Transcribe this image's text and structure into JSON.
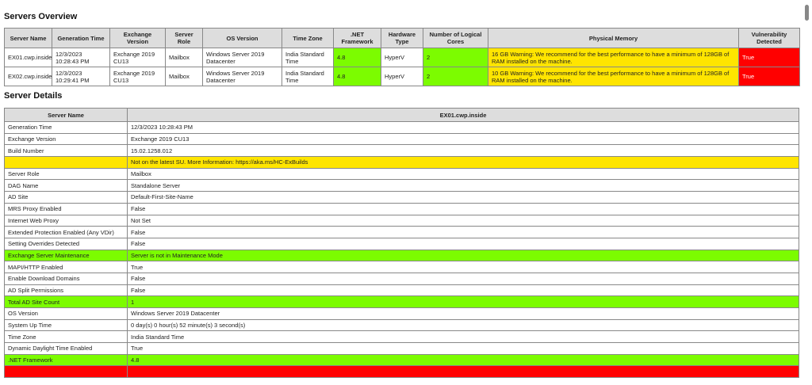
{
  "overview": {
    "title": "Servers Overview",
    "headers": [
      "Server Name",
      "Generation Time",
      "Exchange Version",
      "Server Role",
      "OS Version",
      "Time Zone",
      ".NET Framework",
      "Hardware Type",
      "Number of Logical Cores",
      "Physical Memory",
      "Vulnerability Detected"
    ],
    "rows": [
      [
        "EX01.cwp.inside",
        "12/3/2023 10:28:43 PM",
        "Exchange 2019 CU13",
        "Mailbox",
        "Windows Server 2019 Datacenter",
        "India Standard Time",
        "4.8",
        "HyperV",
        "2",
        "16 GB Warning: We recommend for the best performance to have a minimum of 128GB of RAM installed on the machine.",
        "True"
      ],
      [
        "EX02.cwp.inside",
        "12/3/2023 10:29:41 PM",
        "Exchange 2019 CU13",
        "Mailbox",
        "Windows Server 2019 Datacenter",
        "India Standard Time",
        "4.8",
        "HyperV",
        "2",
        "10 GB Warning: We recommend for the best performance to have a minimum of 128GB of RAM installed on the machine.",
        "True"
      ]
    ]
  },
  "details": {
    "title": "Server Details",
    "headers": [
      "Server Name",
      "EX01.cwp.inside"
    ],
    "rows": [
      {
        "k": "Generation Time",
        "v": "12/3/2023 10:28:43 PM",
        "s": ""
      },
      {
        "k": "Exchange Version",
        "v": "Exchange 2019 CU13",
        "s": ""
      },
      {
        "k": "Build Number",
        "v": "15.02.1258.012",
        "s": ""
      },
      {
        "k": "",
        "v": "Not on the latest SU. More Information: https://aka.ms/HC-ExBuilds",
        "s": "yellow"
      },
      {
        "k": "Server Role",
        "v": "Mailbox",
        "s": ""
      },
      {
        "k": "DAG Name",
        "v": "Standalone Server",
        "s": ""
      },
      {
        "k": "AD Site",
        "v": "Default-First-Site-Name",
        "s": ""
      },
      {
        "k": "MRS Proxy Enabled",
        "v": "False",
        "s": ""
      },
      {
        "k": "Internet Web Proxy",
        "v": "Not Set",
        "s": ""
      },
      {
        "k": "Extended Protection Enabled (Any VDir)",
        "v": "False",
        "s": ""
      },
      {
        "k": "Setting Overrides Detected",
        "v": "False",
        "s": ""
      },
      {
        "k": "Exchange Server Maintenance",
        "v": "Server is not in Maintenance Mode",
        "s": "green"
      },
      {
        "k": "MAPI/HTTP Enabled",
        "v": "True",
        "s": ""
      },
      {
        "k": "Enable Download Domains",
        "v": "False",
        "s": ""
      },
      {
        "k": "AD Split Permissions",
        "v": "False",
        "s": ""
      },
      {
        "k": "Total AD Site Count",
        "v": "1",
        "s": "green"
      },
      {
        "k": "OS Version",
        "v": "Windows Server 2019 Datacenter",
        "s": ""
      },
      {
        "k": "System Up Time",
        "v": "0 day(s) 0 hour(s) 52 minute(s) 3 second(s)",
        "s": ""
      },
      {
        "k": "Time Zone",
        "v": "India Standard Time",
        "s": ""
      },
      {
        "k": "Dynamic Daylight Time Enabled",
        "v": "True",
        "s": ""
      },
      {
        "k": ".NET Framework",
        "v": "4.8",
        "s": "green"
      },
      {
        "k": "",
        "v": "",
        "s": "red"
      }
    ]
  },
  "colors": {
    "good": "#7cfc00",
    "warning": "#ffe500",
    "error": "#ff0000"
  }
}
